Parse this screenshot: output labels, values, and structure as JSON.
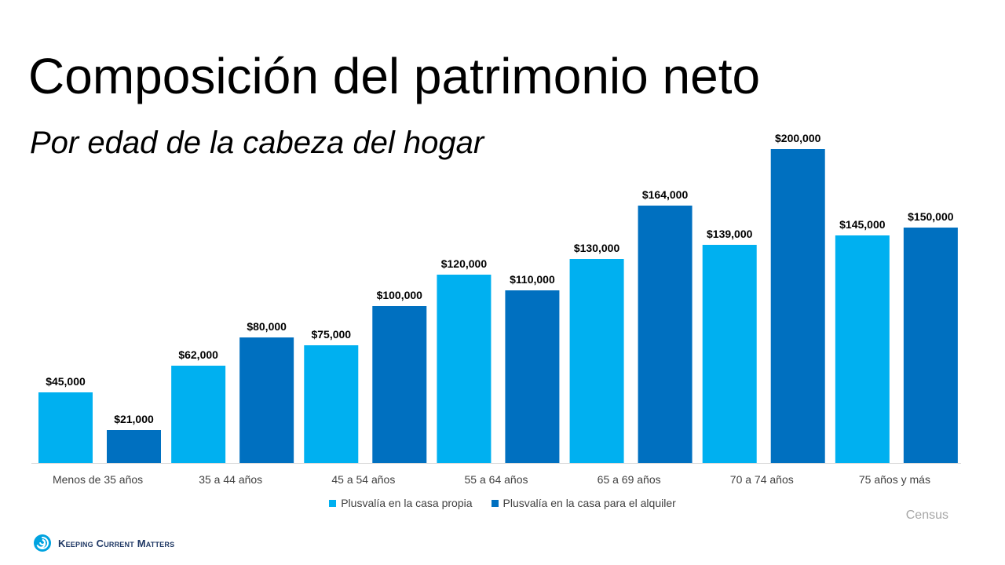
{
  "title": "Composición del patrimonio neto",
  "subtitle": "Por edad de la cabeza del hogar",
  "source": "Census",
  "logo": {
    "text": "Keeping Current Matters",
    "icon": "spiral-logo-icon"
  },
  "colors": {
    "series1": "#00b0f0",
    "series2": "#0070c0"
  },
  "chart_data": {
    "type": "bar",
    "categories": [
      "Menos de 35 años",
      "35 a 44 años",
      "45 a 54 años",
      "55 a 64 años",
      "65 a 69 años",
      "70 a 74 años",
      "75 años y más"
    ],
    "series": [
      {
        "name": "Plusvalía en la casa propia",
        "values": [
          45000,
          62000,
          75000,
          120000,
          130000,
          139000,
          145000
        ],
        "labels": [
          "$45,000",
          "$62,000",
          "$75,000",
          "$120,000",
          "$130,000",
          "$139,000",
          "$145,000"
        ]
      },
      {
        "name": "Plusvalía en la casa para el alquiler",
        "values": [
          21000,
          80000,
          100000,
          110000,
          164000,
          200000,
          150000
        ],
        "labels": [
          "$21,000",
          "$80,000",
          "$100,000",
          "$110,000",
          "$164,000",
          "$200,000",
          "$150,000"
        ]
      }
    ],
    "ylim": [
      0,
      200000
    ],
    "grid": false,
    "legend_position": "bottom"
  }
}
